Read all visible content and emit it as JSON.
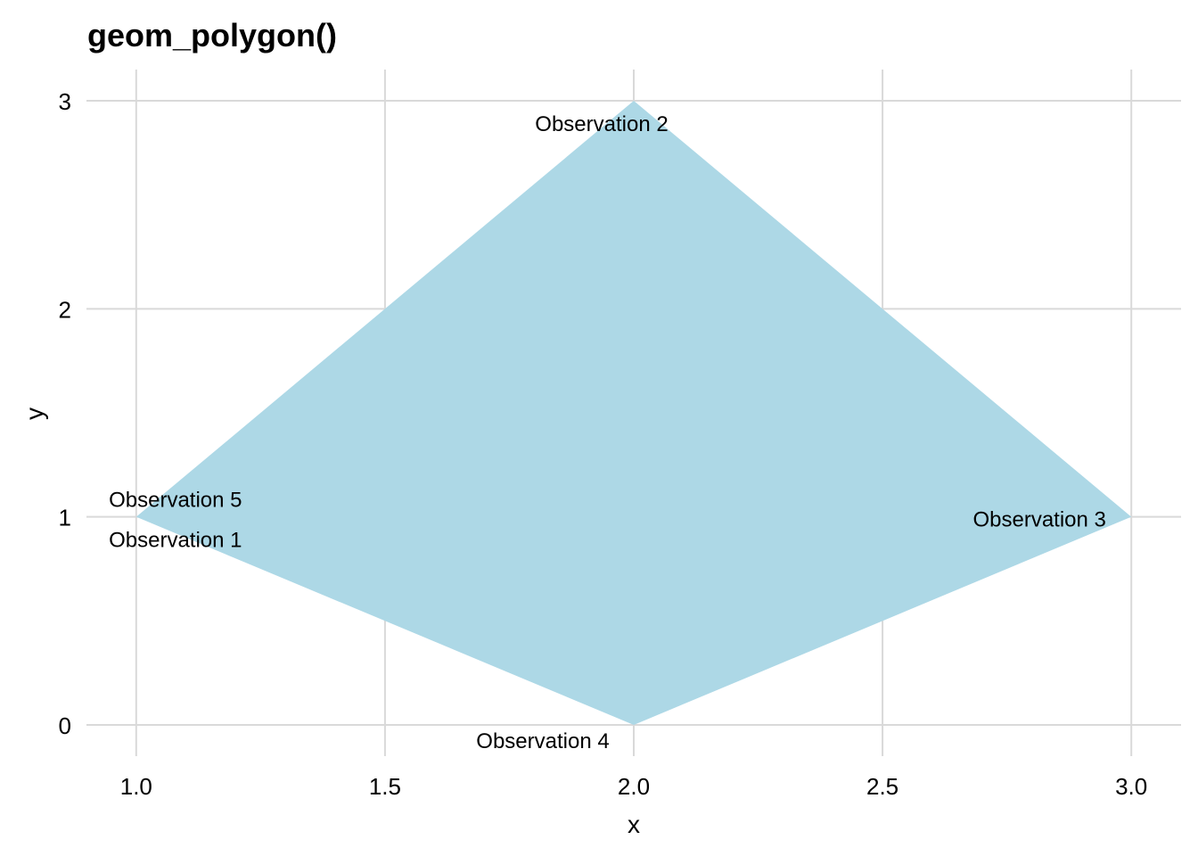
{
  "chart_data": {
    "type": "polygon",
    "title": "geom_polygon()",
    "xlabel": "x",
    "ylabel": "y",
    "xlim": [
      0.9,
      3.1
    ],
    "ylim": [
      -0.15,
      3.15
    ],
    "x_ticks": [
      1.0,
      1.5,
      2.0,
      2.5,
      3.0
    ],
    "x_tick_labels": [
      "1.0",
      "1.5",
      "2.0",
      "2.5",
      "3.0"
    ],
    "y_ticks": [
      0,
      1,
      2,
      3
    ],
    "y_tick_labels": [
      "0",
      "1",
      "2",
      "3"
    ],
    "grid": true,
    "fill_color": "#add8e6",
    "points": [
      {
        "label": "Observation 1",
        "x": 1,
        "y": 1
      },
      {
        "label": "Observation 2",
        "x": 2,
        "y": 3
      },
      {
        "label": "Observation 3",
        "x": 3,
        "y": 1
      },
      {
        "label": "Observation 4",
        "x": 2,
        "y": 0
      },
      {
        "label": "Observation 5",
        "x": 1,
        "y": 1
      }
    ]
  }
}
